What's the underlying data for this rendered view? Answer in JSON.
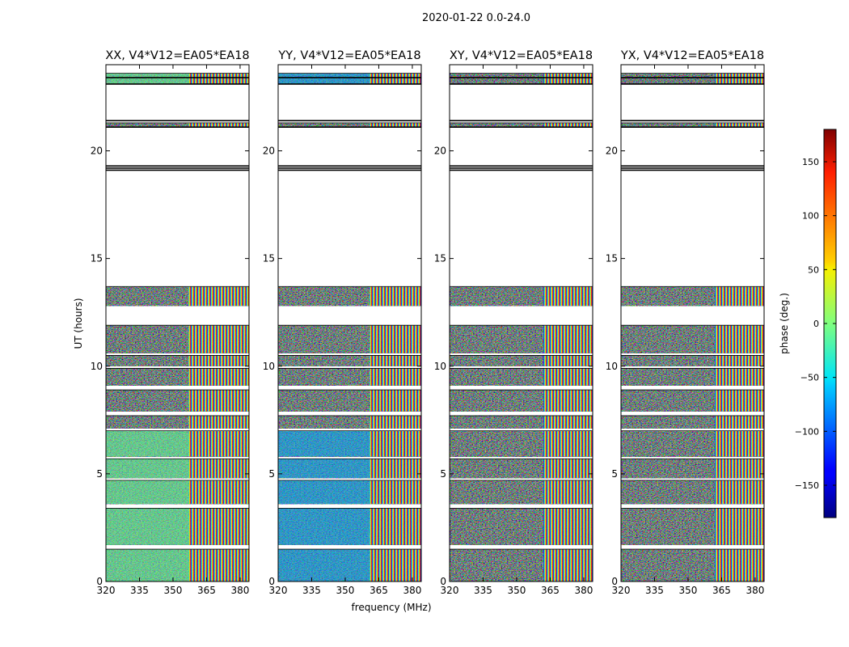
{
  "chart_data": {
    "type": "heatmap",
    "suptitle": "2020-01-22 0.0-24.0",
    "xlabel": "frequency (MHz)",
    "ylabel": "UT (hours)",
    "xlim": [
      320,
      384
    ],
    "ylim": [
      0,
      24
    ],
    "xticks": [
      "320",
      "335",
      "350",
      "365",
      "380"
    ],
    "yticks": [
      "0",
      "5",
      "10",
      "15",
      "20"
    ],
    "colorbar": {
      "label": "phase (deg.)",
      "range": [
        -180,
        180
      ],
      "ticks": [
        "−150",
        "−100",
        "−50",
        "0",
        "50",
        "100",
        "150"
      ],
      "colormap": "jet"
    },
    "panels": [
      {
        "title": "XX, V4*V12=EA05*EA18",
        "coherent_phase_deg": -10,
        "coherent_until_mhz": 357
      },
      {
        "title": "YY, V4*V12=EA05*EA18",
        "coherent_phase_deg": -75,
        "coherent_until_mhz": 361
      },
      {
        "title": "XY, V4*V12=EA05*EA18",
        "coherent_phase_deg": null,
        "coherent_until_mhz": null
      },
      {
        "title": "YX, V4*V12=EA05*EA18",
        "coherent_phase_deg": null,
        "coherent_until_mhz": null
      }
    ],
    "data_time_ranges_hours": [
      [
        0.0,
        1.5
      ],
      [
        1.7,
        3.4
      ],
      [
        3.6,
        4.7
      ],
      [
        4.8,
        5.7
      ],
      [
        5.8,
        7.0
      ],
      [
        7.1,
        7.7
      ],
      [
        7.9,
        8.9
      ],
      [
        9.1,
        9.9
      ],
      [
        10.0,
        10.5
      ],
      [
        10.6,
        11.9
      ],
      [
        12.8,
        13.7
      ],
      [
        21.1,
        21.3
      ],
      [
        23.1,
        23.6
      ]
    ],
    "flagged_lines_hours": [
      19.1,
      19.2,
      19.3,
      21.1,
      21.4,
      23.1,
      23.4
    ]
  }
}
